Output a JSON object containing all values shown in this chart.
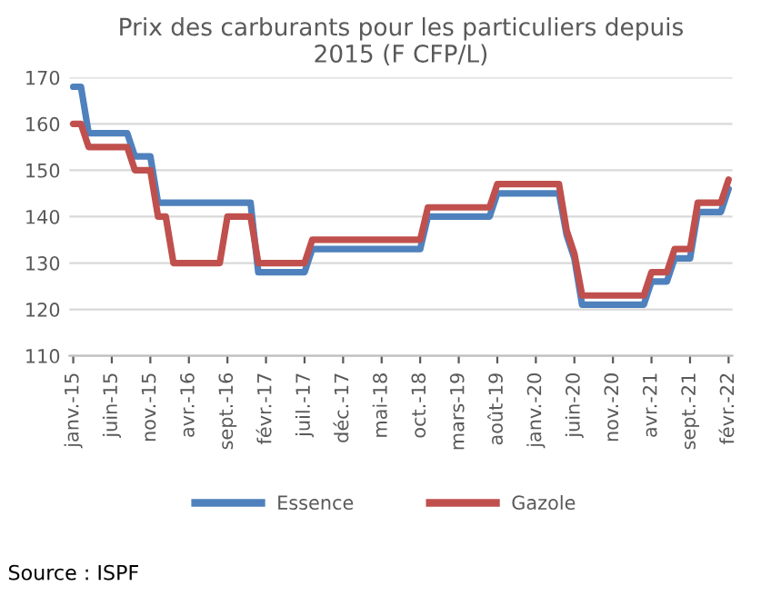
{
  "chart_data": {
    "type": "line",
    "title": "Prix des carburants pour les particuliers depuis\n2015 (F CFP/L)",
    "categories": [
      "janv.-15",
      null,
      null,
      null,
      null,
      "juin-15",
      null,
      null,
      null,
      null,
      "nov.-15",
      null,
      null,
      null,
      null,
      "avr.-16",
      null,
      null,
      null,
      null,
      "sept.-16",
      null,
      null,
      null,
      null,
      "févr.-17",
      null,
      null,
      null,
      null,
      "juil.-17",
      null,
      null,
      null,
      null,
      "déc.-17",
      null,
      null,
      null,
      null,
      "mai-18",
      null,
      null,
      null,
      null,
      "oct.-18",
      null,
      null,
      null,
      null,
      "mars-19",
      null,
      null,
      null,
      null,
      "août-19",
      null,
      null,
      null,
      null,
      "janv.-20",
      null,
      null,
      null,
      null,
      "juin-20",
      null,
      null,
      null,
      null,
      "nov.-20",
      null,
      null,
      null,
      null,
      "avr.-21",
      null,
      null,
      null,
      null,
      "sept.-21",
      null,
      null,
      null,
      null,
      "févr.-22"
    ],
    "series": [
      {
        "name": "Essence",
        "color": "#4f81bd",
        "values": [
          168,
          168,
          158,
          158,
          158,
          158,
          158,
          158,
          153,
          153,
          153,
          143,
          143,
          143,
          143,
          143,
          143,
          143,
          143,
          143,
          143,
          143,
          143,
          143,
          128,
          128,
          128,
          128,
          128,
          128,
          128,
          133,
          133,
          133,
          133,
          133,
          133,
          133,
          133,
          133,
          133,
          133,
          133,
          133,
          133,
          133,
          140,
          140,
          140,
          140,
          140,
          140,
          140,
          140,
          140,
          145,
          145,
          145,
          145,
          145,
          145,
          145,
          145,
          145,
          136,
          131,
          121,
          121,
          121,
          121,
          121,
          121,
          121,
          121,
          121,
          126,
          126,
          126,
          131,
          131,
          131,
          141,
          141,
          141,
          141,
          146
        ]
      },
      {
        "name": "Gazole",
        "color": "#c0504d",
        "values": [
          160,
          160,
          155,
          155,
          155,
          155,
          155,
          155,
          150,
          150,
          150,
          140,
          140,
          130,
          130,
          130,
          130,
          130,
          130,
          130,
          140,
          140,
          140,
          140,
          130,
          130,
          130,
          130,
          130,
          130,
          130,
          135,
          135,
          135,
          135,
          135,
          135,
          135,
          135,
          135,
          135,
          135,
          135,
          135,
          135,
          135,
          142,
          142,
          142,
          142,
          142,
          142,
          142,
          142,
          142,
          147,
          147,
          147,
          147,
          147,
          147,
          147,
          147,
          147,
          137,
          132,
          123,
          123,
          123,
          123,
          123,
          123,
          123,
          123,
          123,
          128,
          128,
          128,
          133,
          133,
          133,
          143,
          143,
          143,
          143,
          148
        ]
      }
    ],
    "ylim": [
      110,
      170
    ],
    "yticks": [
      110,
      120,
      130,
      140,
      150,
      160,
      170
    ],
    "grid": "y",
    "legend": "bottom",
    "annotations": [
      "Source : ISPF"
    ]
  }
}
